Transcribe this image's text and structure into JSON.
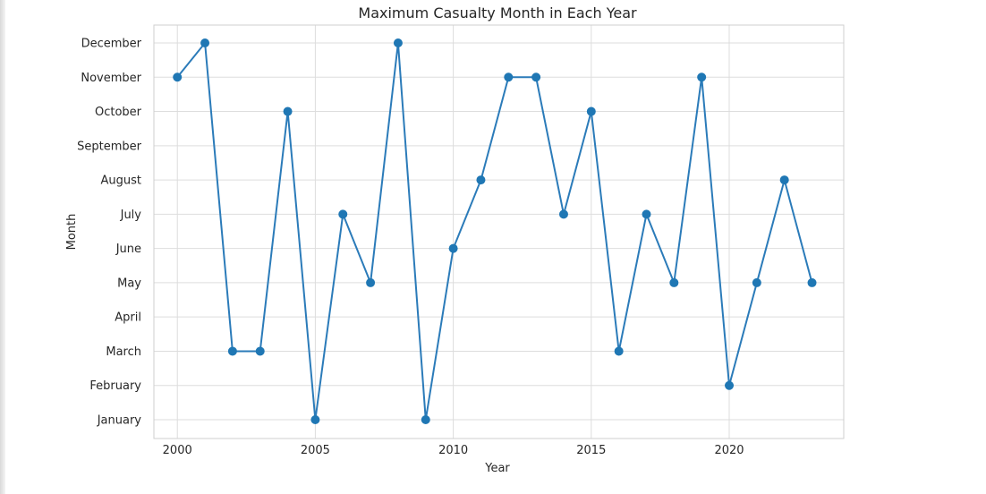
{
  "chart_data": {
    "type": "line",
    "title": "Maximum Casualty Month in Each Year",
    "xlabel": "Year",
    "ylabel": "Month",
    "x": [
      2000,
      2001,
      2002,
      2003,
      2004,
      2005,
      2006,
      2007,
      2008,
      2009,
      2010,
      2011,
      2012,
      2013,
      2014,
      2015,
      2016,
      2017,
      2018,
      2019,
      2020,
      2021,
      2022,
      2023
    ],
    "y": [
      "November",
      "December",
      "March",
      "March",
      "October",
      "January",
      "July",
      "May",
      "December",
      "January",
      "June",
      "August",
      "November",
      "November",
      "July",
      "October",
      "March",
      "July",
      "May",
      "November",
      "February",
      "May",
      "August",
      "May"
    ],
    "y_categories": [
      "January",
      "February",
      "March",
      "April",
      "May",
      "June",
      "July",
      "August",
      "September",
      "October",
      "November",
      "December"
    ],
    "x_ticks": [
      "2000",
      "2005",
      "2010",
      "2015",
      "2020"
    ],
    "xlim": [
      1999.15,
      2024.15
    ],
    "grid": true,
    "marker": "circle",
    "colors": {
      "line": "#2b7bb9",
      "marker": "#1f77b4",
      "grid": "#dddddd",
      "frame": "#cfcfcf"
    }
  }
}
